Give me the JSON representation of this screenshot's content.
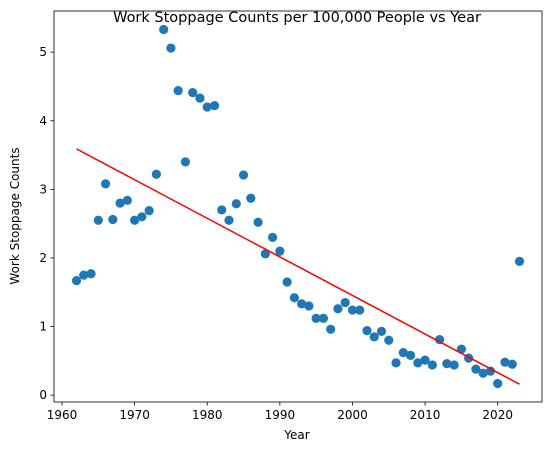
{
  "chart_data": {
    "type": "scatter",
    "title": "Work Stoppage Counts per 100,000 People vs Year",
    "xlabel": "Year",
    "ylabel": "Work Stoppage Counts",
    "xlim": [
      1958.9,
      2026.1
    ],
    "ylim": [
      -0.1,
      5.6
    ],
    "xticks": [
      1960,
      1970,
      1980,
      1990,
      2000,
      2010,
      2020
    ],
    "yticks": [
      0,
      1,
      2,
      3,
      4,
      5
    ],
    "grid": false,
    "point_color": "#1f77b4",
    "line_color": "#ff0000",
    "series": [
      {
        "name": "Work Stoppage Counts",
        "x": [
          1962,
          1963,
          1964,
          1965,
          1966,
          1967,
          1968,
          1969,
          1970,
          1971,
          1972,
          1973,
          1974,
          1975,
          1976,
          1977,
          1978,
          1979,
          1980,
          1981,
          1982,
          1983,
          1984,
          1985,
          1986,
          1987,
          1988,
          1989,
          1990,
          1991,
          1992,
          1993,
          1994,
          1995,
          1996,
          1997,
          1998,
          1999,
          2000,
          2001,
          2002,
          2003,
          2004,
          2005,
          2006,
          2007,
          2008,
          2009,
          2010,
          2011,
          2012,
          2013,
          2014,
          2015,
          2016,
          2017,
          2018,
          2019,
          2020,
          2021,
          2022,
          2023
        ],
        "y": [
          1.67,
          1.75,
          1.77,
          2.55,
          3.08,
          2.56,
          2.8,
          2.84,
          2.55,
          2.6,
          2.69,
          3.22,
          5.33,
          5.06,
          4.44,
          3.4,
          4.41,
          4.33,
          4.2,
          4.22,
          2.7,
          2.55,
          2.79,
          3.21,
          2.87,
          2.52,
          2.06,
          2.3,
          2.1,
          1.65,
          1.42,
          1.33,
          1.3,
          1.12,
          1.12,
          0.96,
          1.26,
          1.35,
          1.24,
          1.24,
          0.94,
          0.85,
          0.93,
          0.8,
          0.47,
          0.62,
          0.58,
          0.47,
          0.51,
          0.44,
          0.81,
          0.46,
          0.44,
          0.67,
          0.54,
          0.38,
          0.32,
          0.35,
          0.17,
          0.48,
          0.45,
          1.95
        ]
      }
    ],
    "trendline": {
      "name": "Linear fit",
      "x": [
        1962,
        2023
      ],
      "y": [
        3.59,
        0.16
      ]
    }
  }
}
